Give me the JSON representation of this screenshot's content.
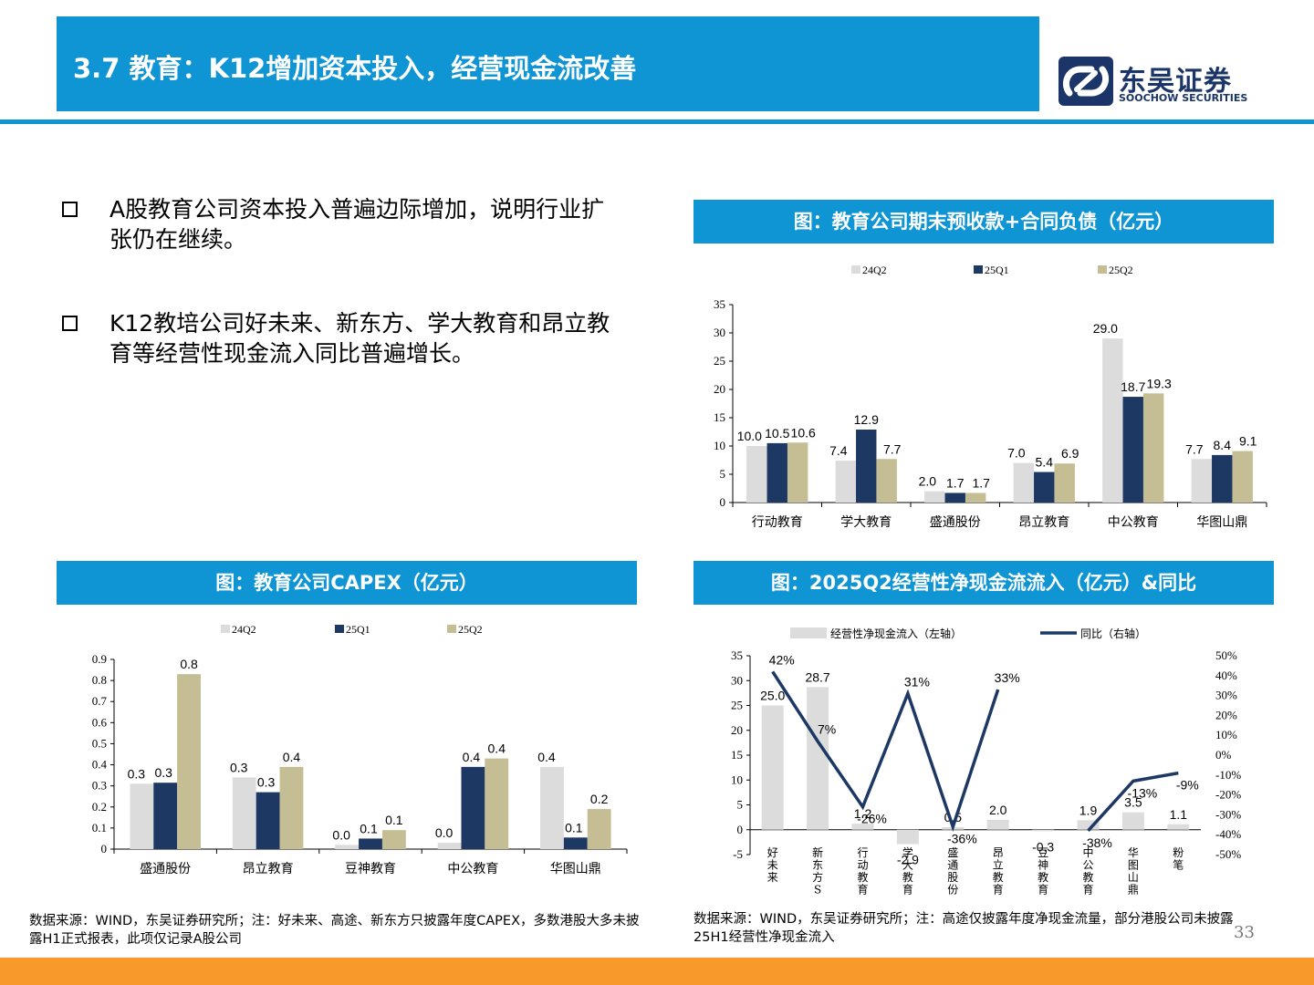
{
  "header": {
    "title": "3.7 教育：K12增加资本投入，经营现金流改善"
  },
  "logo": {
    "cn": "东吴证券",
    "en": "SOOCHOW SECURITIES"
  },
  "bullets": [
    "A股教育公司资本投入普遍边际增加，说明行业扩张仍在继续。",
    "K12教培公司好未来、新东方、学大教育和昂立教育等经营性现金流入同比普遍增长。"
  ],
  "page_number": "33",
  "colors": {
    "primary": "#0f95d4",
    "s24q2": "#dcdcdc",
    "s25q1": "#1c3863",
    "s25q2": "#c5bd93",
    "bottom": "#f79a2b"
  },
  "charts": {
    "contract": {
      "header": "图：教育公司期末预收款+合同负债（亿元）"
    },
    "capex": {
      "header": "图：教育公司CAPEX（亿元）"
    },
    "cashflow": {
      "header": "图：2025Q2经营性净现金流流入（亿元）&同比"
    }
  },
  "sources": {
    "left": "数据来源：WIND，东吴证券研究所；注：好未来、高途、新东方只披露年度CAPEX，多数港股大多未披露H1正式报表，此项仅记录A股公司",
    "right": "数据来源：WIND，东吴证券研究所；注：高途仅披露年度净现金流量，部分港股公司未披露25H1经营性净现金流入"
  },
  "chart_data": [
    {
      "type": "bar",
      "title": "图：教育公司期末预收款+合同负债（亿元）",
      "categories": [
        "行动教育",
        "学大教育",
        "盛通股份",
        "昂立教育",
        "中公教育",
        "华图山鼎"
      ],
      "series": [
        {
          "name": "24Q2",
          "values": [
            10.0,
            7.4,
            2.0,
            7.0,
            29.0,
            7.7
          ]
        },
        {
          "name": "25Q1",
          "values": [
            10.5,
            12.9,
            1.7,
            5.4,
            18.7,
            8.4
          ]
        },
        {
          "name": "25Q2",
          "values": [
            10.6,
            7.7,
            1.7,
            6.9,
            19.3,
            9.1
          ]
        }
      ],
      "ylim": [
        0,
        35
      ],
      "yticks": [
        0,
        5,
        10,
        15,
        20,
        25,
        30,
        35
      ],
      "legend": "top"
    },
    {
      "type": "bar",
      "title": "图：教育公司CAPEX（亿元）",
      "categories": [
        "盛通股份",
        "昂立教育",
        "豆神教育",
        "中公教育",
        "华图山鼎"
      ],
      "series": [
        {
          "name": "24Q2",
          "values": [
            0.31,
            0.34,
            0.02,
            0.03,
            0.39
          ]
        },
        {
          "name": "25Q1",
          "values": [
            0.315,
            0.27,
            0.05,
            0.39,
            0.055
          ]
        },
        {
          "name": "25Q2",
          "values": [
            0.83,
            0.39,
            0.09,
            0.43,
            0.19
          ]
        }
      ],
      "labels": [
        [
          "0.3",
          "0.3",
          "0.0",
          "0.0",
          "0.4"
        ],
        [
          "0.3",
          "0.3",
          "0.1",
          "0.4",
          "0.1"
        ],
        [
          "0.8",
          "0.4",
          "0.1",
          "0.4",
          "0.2"
        ]
      ],
      "ylim": [
        0,
        0.9
      ],
      "yticks": [
        "0",
        "0.1",
        "0.2",
        "0.3",
        "0.4",
        "0.5",
        "0.6",
        "0.7",
        "0.8",
        "0.9"
      ],
      "legend": "top"
    },
    {
      "type": "bar",
      "title": "图：2025Q2经营性净现金流流入（亿元）&同比",
      "categories": [
        "好未来",
        "新东方S",
        "行动教育",
        "学大教育",
        "盛通股份",
        "昂立教育",
        "豆神教育",
        "中公教育",
        "华图山鼎",
        "粉笔"
      ],
      "series": [
        {
          "name": "经营性净现金流入（左轴）",
          "type": "bar",
          "values": [
            25.0,
            28.7,
            1.2,
            -2.9,
            0.5,
            2.0,
            -0.3,
            1.9,
            3.5,
            1.1
          ],
          "labels": [
            "25.0",
            "28.7",
            "1.2",
            "-2.9",
            "0.5",
            "2.0",
            "-0.3",
            "1.9",
            "3.5",
            "1.1"
          ]
        },
        {
          "name": "同比（右轴）",
          "type": "line",
          "values": [
            42,
            7,
            -26,
            31,
            -36,
            33,
            null,
            -38,
            -13,
            -9
          ],
          "labels": [
            "42%",
            "7%",
            "-26%",
            "31%",
            "-36%",
            "33%",
            "",
            "-38%",
            "-13%",
            "-9%"
          ]
        }
      ],
      "ylim": [
        -5,
        35
      ],
      "yticks": [
        -5,
        0,
        5,
        10,
        15,
        20,
        25,
        30,
        35
      ],
      "y2lim": [
        -50,
        50
      ],
      "y2ticks": [
        "-50%",
        "-40%",
        "-30%",
        "-20%",
        "-10%",
        "0%",
        "10%",
        "20%",
        "30%",
        "40%",
        "50%"
      ],
      "legend": "top"
    }
  ]
}
